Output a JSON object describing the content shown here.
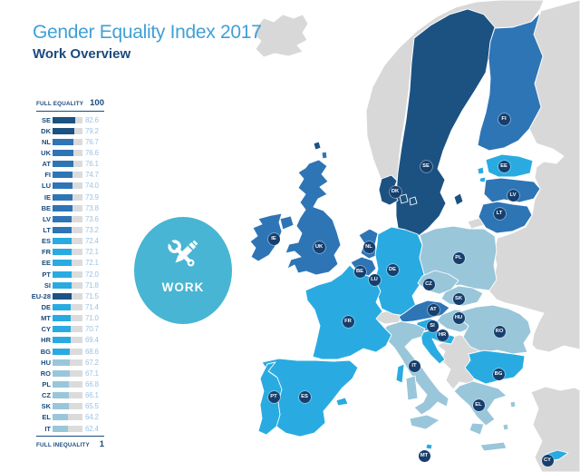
{
  "title": "Gender Equality Index 2017",
  "subtitle": "Work Overview",
  "scale": {
    "top_label": "FULL EQUALITY",
    "top_value": "100",
    "bottom_label": "FULL INEQUALITY",
    "bottom_value": "1"
  },
  "domain_badge": {
    "label": "WORK",
    "icon": "wrench-and-pencil-icon"
  },
  "palette": {
    "dark": "#1c5282",
    "medium": "#2e75b6",
    "light": "#29abe2",
    "pale": "#9ac6da",
    "track": "#dbdbdb",
    "noneu": "#d8d8d8",
    "badge": "#173f6d",
    "navy_text": "#1b4a7e",
    "value_text": "#9dc3e3",
    "title_blue": "#3fa0d8",
    "work": "#47b5d3"
  },
  "chart_data": {
    "type": "bar",
    "orientation": "horizontal",
    "title": "Gender Equality Index 2017 — Work Overview",
    "range": [
      1,
      100
    ],
    "max_label": "FULL EQUALITY",
    "min_label": "FULL INEQUALITY",
    "categories": [
      "SE",
      "DK",
      "NL",
      "UK",
      "AT",
      "FI",
      "LU",
      "IE",
      "BE",
      "LV",
      "LT",
      "ES",
      "FR",
      "EE",
      "PT",
      "SI",
      "EU-28",
      "DE",
      "MT",
      "CY",
      "HR",
      "BG",
      "HU",
      "RO",
      "PL",
      "CZ",
      "SK",
      "EL",
      "IT"
    ],
    "values": [
      82.6,
      79.2,
      76.7,
      76.6,
      76.1,
      74.7,
      74.0,
      73.9,
      73.8,
      73.6,
      73.2,
      72.4,
      72.1,
      72.1,
      72.0,
      71.8,
      71.5,
      71.4,
      71.0,
      70.7,
      69.4,
      68.6,
      67.2,
      67.1,
      66.8,
      66.1,
      65.5,
      64.2,
      62.4
    ],
    "items": [
      {
        "code": "SE",
        "value": 82.6,
        "band": "dark"
      },
      {
        "code": "DK",
        "value": 79.2,
        "band": "dark"
      },
      {
        "code": "NL",
        "value": 76.7,
        "band": "medium"
      },
      {
        "code": "UK",
        "value": 76.6,
        "band": "medium"
      },
      {
        "code": "AT",
        "value": 76.1,
        "band": "medium"
      },
      {
        "code": "FI",
        "value": 74.7,
        "band": "medium"
      },
      {
        "code": "LU",
        "value": 74.0,
        "band": "medium"
      },
      {
        "code": "IE",
        "value": 73.9,
        "band": "medium"
      },
      {
        "code": "BE",
        "value": 73.8,
        "band": "medium"
      },
      {
        "code": "LV",
        "value": 73.6,
        "band": "medium"
      },
      {
        "code": "LT",
        "value": 73.2,
        "band": "medium"
      },
      {
        "code": "ES",
        "value": 72.4,
        "band": "light"
      },
      {
        "code": "FR",
        "value": 72.1,
        "band": "light"
      },
      {
        "code": "EE",
        "value": 72.1,
        "band": "light"
      },
      {
        "code": "PT",
        "value": 72.0,
        "band": "light"
      },
      {
        "code": "SI",
        "value": 71.8,
        "band": "light"
      },
      {
        "code": "EU-28",
        "value": 71.5,
        "band": "dark"
      },
      {
        "code": "DE",
        "value": 71.4,
        "band": "light"
      },
      {
        "code": "MT",
        "value": 71.0,
        "band": "light"
      },
      {
        "code": "CY",
        "value": 70.7,
        "band": "light"
      },
      {
        "code": "HR",
        "value": 69.4,
        "band": "light"
      },
      {
        "code": "BG",
        "value": 68.6,
        "band": "light"
      },
      {
        "code": "HU",
        "value": 67.2,
        "band": "pale"
      },
      {
        "code": "RO",
        "value": 67.1,
        "band": "pale"
      },
      {
        "code": "PL",
        "value": 66.8,
        "band": "pale"
      },
      {
        "code": "CZ",
        "value": 66.1,
        "band": "pale"
      },
      {
        "code": "SK",
        "value": 65.5,
        "band": "pale"
      },
      {
        "code": "EL",
        "value": 64.2,
        "band": "pale"
      },
      {
        "code": "IT",
        "value": 62.4,
        "band": "pale"
      }
    ]
  },
  "map": {
    "badges": [
      "SE",
      "DK",
      "FI",
      "EE",
      "LV",
      "LT",
      "IE",
      "UK",
      "NL",
      "BE",
      "LU",
      "DE",
      "FR",
      "PL",
      "CZ",
      "SK",
      "AT",
      "HU",
      "SI",
      "HR",
      "RO",
      "BG",
      "IT",
      "EL",
      "ES",
      "PT",
      "MT",
      "CY"
    ],
    "country_bands": {
      "SE": "dark",
      "DK": "dark",
      "NL": "medium",
      "UK": "medium",
      "AT": "medium",
      "FI": "medium",
      "LU": "medium",
      "IE": "medium",
      "BE": "medium",
      "LV": "medium",
      "LT": "medium",
      "ES": "light",
      "FR": "light",
      "EE": "light",
      "PT": "light",
      "SI": "light",
      "DE": "light",
      "MT": "light",
      "CY": "light",
      "HR": "light",
      "BG": "light",
      "HU": "pale",
      "RO": "pale",
      "PL": "pale",
      "CZ": "pale",
      "SK": "pale",
      "EL": "pale",
      "IT": "pale"
    }
  }
}
